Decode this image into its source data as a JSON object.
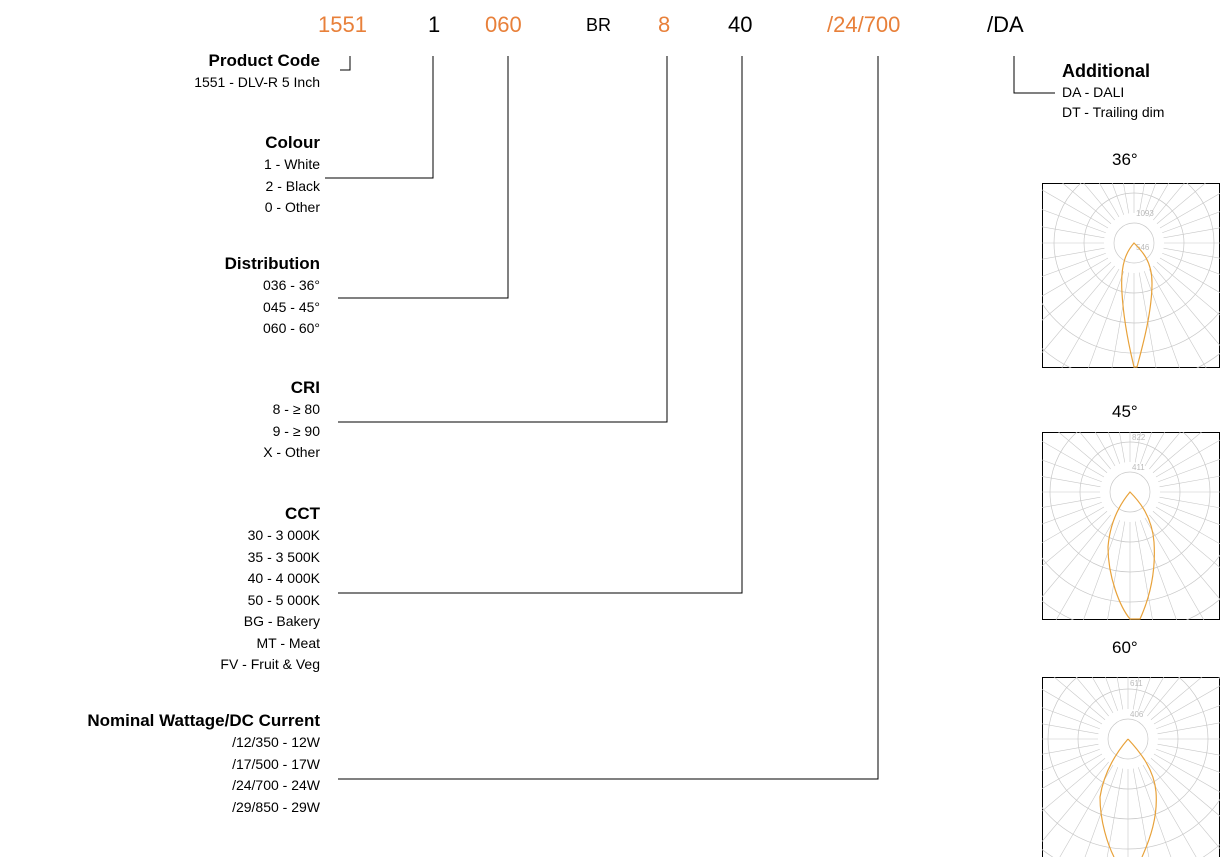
{
  "code_segments": [
    {
      "id": "product",
      "text": "1551",
      "color": "#e8803a"
    },
    {
      "id": "colour",
      "text": "1",
      "color": "#000000"
    },
    {
      "id": "distribution",
      "text": "060",
      "color": "#e8803a"
    },
    {
      "id": "br",
      "text": "BR",
      "color": "#000000"
    },
    {
      "id": "cri",
      "text": "8",
      "color": "#e8803a"
    },
    {
      "id": "cct",
      "text": "40",
      "color": "#000000"
    },
    {
      "id": "wattage",
      "text": "/24/700",
      "color": "#e8803a"
    },
    {
      "id": "additional",
      "text": "/DA",
      "color": "#000000"
    }
  ],
  "groups": {
    "product": {
      "title": "Product Code",
      "items": [
        "1551 - DLV-R 5 Inch"
      ]
    },
    "colour": {
      "title": "Colour",
      "items": [
        "1 - White",
        "2 - Black",
        "0 - Other"
      ]
    },
    "distribution": {
      "title": "Distribution",
      "items": [
        "036 - 36°",
        "045 - 45°",
        "060 - 60°"
      ]
    },
    "cri": {
      "title": "CRI",
      "items": [
        "8 - ≥ 80",
        "9 - ≥ 90",
        "X - Other"
      ]
    },
    "cct": {
      "title": "CCT",
      "items": [
        "30 - 3 000K",
        "35 - 3 500K",
        "40 - 4 000K",
        "50 - 5 000K",
        "BG - Bakery",
        "MT - Meat",
        "FV - Fruit & Veg"
      ]
    },
    "wattage": {
      "title": "Nominal Wattage/DC Current",
      "items": [
        "/12/350 - 12W",
        "/17/500 - 17W",
        "/24/700 - 24W",
        "/29/850 - 29W"
      ]
    },
    "additional": {
      "title": "Additional",
      "items": [
        "DA - DALI",
        "DT - Trailing dim"
      ]
    }
  },
  "polar_diagrams": [
    {
      "label": "36°",
      "ring_labels": [
        "1093",
        "546"
      ],
      "beam_color": "#e8a23a"
    },
    {
      "label": "45°",
      "ring_labels": [
        "822",
        "411"
      ],
      "beam_color": "#e8a23a"
    },
    {
      "label": "60°",
      "ring_labels": [
        "611",
        "406"
      ],
      "beam_color": "#e8a23a"
    }
  ],
  "colors": {
    "accent": "#e8803a",
    "line": "#000000",
    "grid": "#c8c8c8"
  }
}
